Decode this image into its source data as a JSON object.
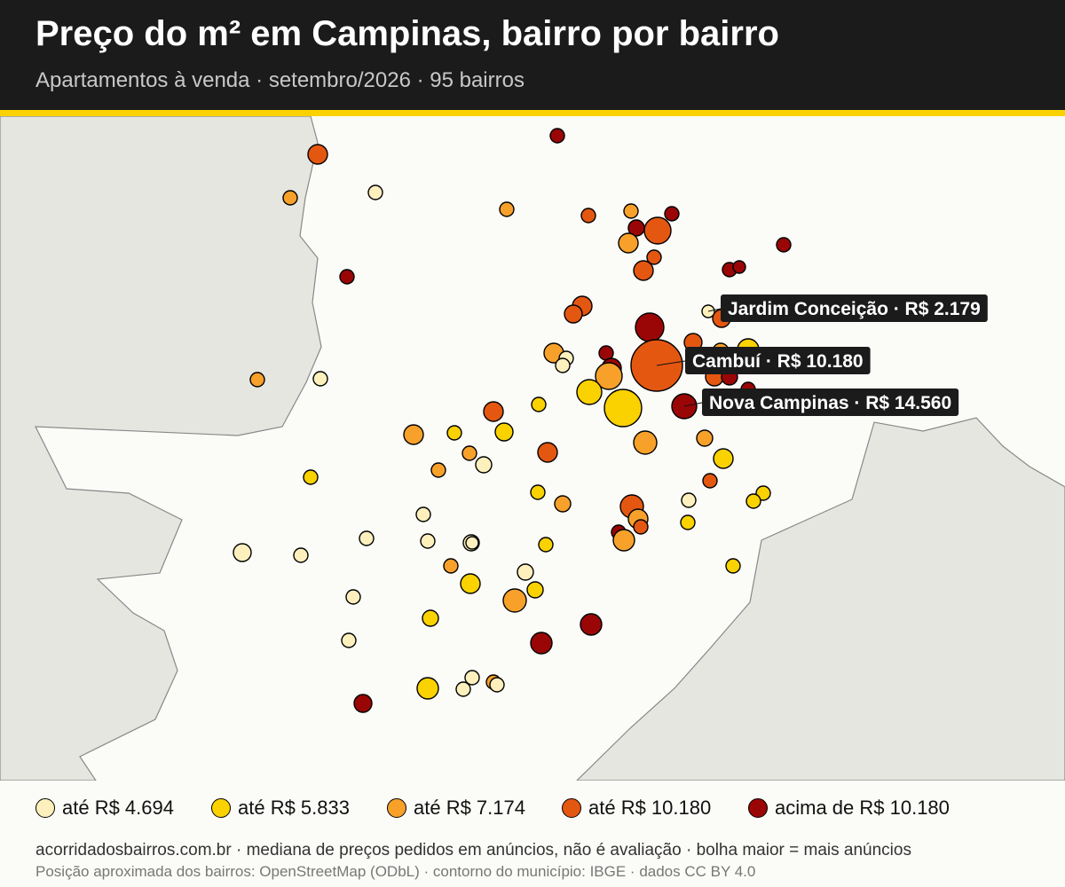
{
  "header": {
    "title": "Preço do m² em Campinas, bairro por bairro",
    "subtitle": "Apartamentos à venda · setembro/2026 · 95 bairros"
  },
  "colors": {
    "header_bg": "#1b1b1b",
    "accent": "#f9d200",
    "land": "#fbfbf8",
    "outside": "#e6e6e1",
    "bin1": "#fdf0bd",
    "bin2": "#f9d200",
    "bin3": "#f7a12a",
    "bin4": "#e45710",
    "bin5": "#9a0606"
  },
  "legend": {
    "items": [
      {
        "label": "até R$ 4.694",
        "color": "#fdf0bd"
      },
      {
        "label": "até R$ 5.833",
        "color": "#f9d200"
      },
      {
        "label": "até R$ 7.174",
        "color": "#f7a12a"
      },
      {
        "label": "até R$ 10.180",
        "color": "#e45710"
      },
      {
        "label": "acima de R$ 10.180",
        "color": "#9a0606"
      }
    ]
  },
  "callouts": [
    {
      "label": "Jardim Conceição · R$ 2.179"
    },
    {
      "label": "Cambuí · R$ 10.180"
    },
    {
      "label": "Nova Campinas · R$ 14.560"
    }
  ],
  "footer": {
    "line1": "acorridadosbairros.com.br · mediana de preços pedidos em anúncios, não é avaliação · bolha maior = mais anúncios",
    "line2": "Posição aproximada dos bairros: OpenStreetMap (ODbL) · contorno do município: IBGE · dados CC BY 4.0"
  }
}
